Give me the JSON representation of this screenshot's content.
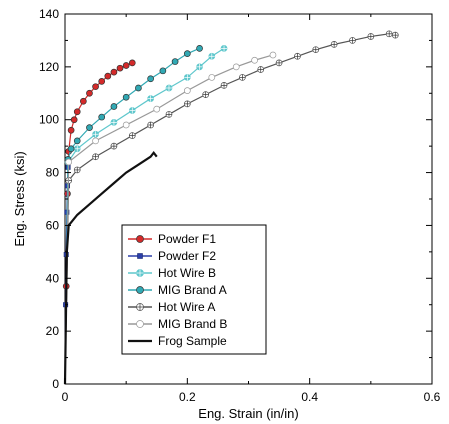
{
  "chart_data": {
    "type": "line",
    "xlabel": "Eng. Strain (in/in)",
    "ylabel": "Eng. Stress (ksi)",
    "xlim": [
      0,
      0.6
    ],
    "ylim": [
      0,
      140
    ],
    "xticks": [
      0,
      0.2,
      0.4,
      0.6
    ],
    "xtick_labels": [
      "0",
      "0.2",
      "0.4",
      "0.6"
    ],
    "yticks": [
      0,
      20,
      40,
      60,
      80,
      100,
      120,
      140
    ],
    "ytick_labels": [
      "0",
      "20",
      "40",
      "60",
      "80",
      "100",
      "120",
      "140"
    ],
    "grid": false,
    "legend_position": "bottom-left",
    "series": [
      {
        "name": "Powder F1",
        "color": "#d42a2a",
        "marker": "filled-circle",
        "x": [
          0,
          0.002,
          0.004,
          0.006,
          0.01,
          0.015,
          0.02,
          0.03,
          0.04,
          0.05,
          0.06,
          0.07,
          0.08,
          0.09,
          0.1,
          0.11
        ],
        "y": [
          0,
          37,
          72,
          88,
          96,
          100,
          103,
          107,
          110,
          112.5,
          114.5,
          116.5,
          118,
          119.5,
          120.5,
          121.5
        ]
      },
      {
        "name": "Powder F2",
        "color": "#2b3fa8",
        "marker": "filled-square",
        "x": [
          0,
          0.001,
          0.002,
          0.003,
          0.004,
          0.005
        ],
        "y": [
          0,
          30,
          49,
          65,
          75,
          82
        ]
      },
      {
        "name": "Hot Wire B",
        "color": "#5fc7cc",
        "marker": "circle-with-crosshair",
        "x": [
          0,
          0.005,
          0.02,
          0.05,
          0.08,
          0.11,
          0.14,
          0.17,
          0.2,
          0.22,
          0.24,
          0.26
        ],
        "y": [
          0,
          84,
          89,
          94.5,
          99,
          103.5,
          108,
          112,
          116,
          120,
          124,
          127
        ]
      },
      {
        "name": "MIG Brand A",
        "color": "#31a9b4",
        "marker": "filled-circle",
        "x": [
          0,
          0.005,
          0.01,
          0.02,
          0.04,
          0.06,
          0.08,
          0.1,
          0.12,
          0.14,
          0.16,
          0.18,
          0.2,
          0.22
        ],
        "y": [
          0,
          85,
          89,
          92,
          97,
          101,
          105,
          108.5,
          112,
          115.5,
          118.5,
          122,
          125,
          127
        ]
      },
      {
        "name": "Hot Wire A",
        "color": "#555555",
        "marker": "circle-with-cross",
        "x": [
          0,
          0.006,
          0.02,
          0.05,
          0.08,
          0.11,
          0.14,
          0.17,
          0.2,
          0.23,
          0.26,
          0.29,
          0.32,
          0.35,
          0.38,
          0.41,
          0.44,
          0.47,
          0.5,
          0.53,
          0.54
        ],
        "y": [
          0,
          77,
          81,
          86,
          90,
          94,
          98,
          102,
          106,
          109.5,
          113,
          116,
          119,
          121.5,
          124,
          126.5,
          128.5,
          130,
          131.5,
          132.5,
          132
        ]
      },
      {
        "name": "MIG Brand B",
        "color": "#999999",
        "marker": "open-circle",
        "x": [
          0,
          0.006,
          0.05,
          0.1,
          0.15,
          0.2,
          0.24,
          0.28,
          0.31,
          0.34
        ],
        "y": [
          0,
          84,
          92,
          98,
          104,
          111,
          116,
          120,
          122.5,
          124.5
        ]
      },
      {
        "name": "Frog Sample",
        "color": "#111111",
        "marker": "none",
        "x": [
          0,
          0.003,
          0.006,
          0.02,
          0.04,
          0.06,
          0.08,
          0.1,
          0.12,
          0.14,
          0.145,
          0.15
        ],
        "y": [
          0,
          50,
          60,
          64,
          68,
          72,
          76,
          80,
          83,
          86,
          87.5,
          86
        ]
      }
    ]
  }
}
